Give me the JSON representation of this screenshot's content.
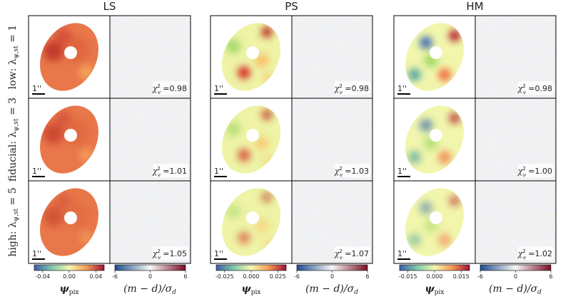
{
  "columns": [
    {
      "title": "LS",
      "psi_cbar_ticks": [
        "-0.04",
        "0.00",
        "0.04"
      ]
    },
    {
      "title": "PS",
      "psi_cbar_ticks": [
        "-0.025",
        "0.000",
        "0.025"
      ]
    },
    {
      "title": "HM",
      "psi_cbar_ticks": [
        "-0.015",
        "0.000",
        "0.015"
      ]
    }
  ],
  "residual_cbar_ticks": [
    "-6",
    "0",
    "6"
  ],
  "psi_cbar_label": {
    "symbol": "ψ",
    "subscript": "pix"
  },
  "residual_cbar_label": {
    "text": "(m − d)/σ",
    "subscript": "d"
  },
  "rows": [
    {
      "label": "low: λ",
      "subscript": "ψ,st",
      "rhs": " = 1"
    },
    {
      "label": "fiducial: λ",
      "subscript": "ψ,st",
      "rhs": " = 3"
    },
    {
      "label": "high: λ",
      "subscript": "ψ,st",
      "rhs": " = 5"
    }
  ],
  "chi2": {
    "symbol": "χ",
    "superscript": "2",
    "subscript": "ν",
    "equals": " ="
  },
  "panels": [
    [
      "0.98",
      "0.98",
      "0.98"
    ],
    [
      "1.01",
      "1.03",
      "1.00"
    ],
    [
      "1.05",
      "1.07",
      "1.02"
    ]
  ],
  "scale_bar": "1''"
}
